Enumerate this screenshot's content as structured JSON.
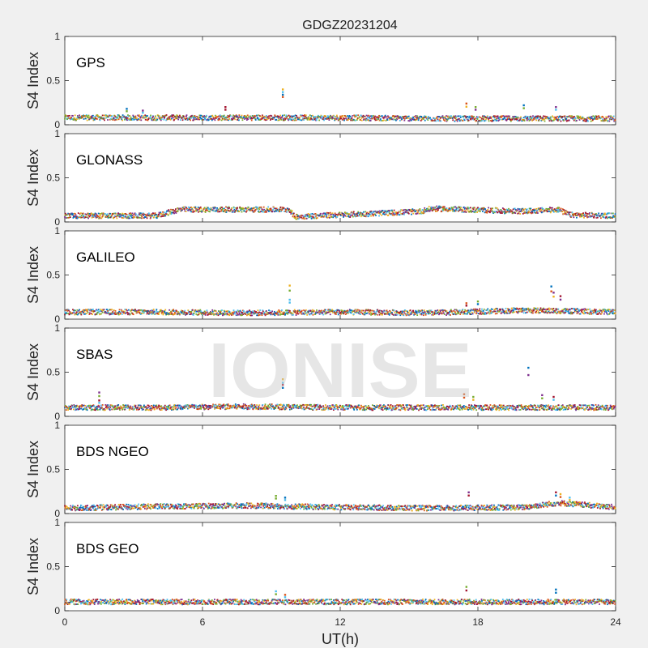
{
  "figure": {
    "title": "GDGZ20231204",
    "xlabel": "UT(h)",
    "watermark": "IONISE"
  },
  "chart_data": {
    "type": "scatter",
    "title": "GDGZ20231204",
    "xlabel": "UT(h)",
    "ylabel": "S4 Index",
    "xlim": [
      0,
      24
    ],
    "ylim": [
      0,
      1
    ],
    "xticks": [
      "0",
      "6",
      "12",
      "18",
      "24"
    ],
    "yticks": [
      "0",
      "0.5",
      "1"
    ],
    "grid": false,
    "series_colors": [
      "#0072bd",
      "#d95319",
      "#edb120",
      "#7e2f8e",
      "#77ac30",
      "#4dbeee",
      "#a2142f"
    ],
    "panels": [
      {
        "name": "GPS",
        "ylabel": "S4 Index",
        "baseline": [
          [
            0,
            0.08
          ],
          [
            4,
            0.08
          ],
          [
            8,
            0.08
          ],
          [
            12,
            0.08
          ],
          [
            16,
            0.07
          ],
          [
            20,
            0.07
          ],
          [
            24,
            0.07
          ]
        ],
        "spikes": [
          [
            2.7,
            0.18
          ],
          [
            3.4,
            0.16
          ],
          [
            7.0,
            0.2
          ],
          [
            9.5,
            0.4
          ],
          [
            9.5,
            0.37
          ],
          [
            17.5,
            0.24
          ],
          [
            17.9,
            0.2
          ],
          [
            20.0,
            0.22
          ],
          [
            21.4,
            0.2
          ]
        ]
      },
      {
        "name": "GLONASS",
        "ylabel": "S4 Index",
        "baseline": [
          [
            0,
            0.07
          ],
          [
            4,
            0.07
          ],
          [
            5,
            0.14
          ],
          [
            9.8,
            0.14
          ],
          [
            10,
            0.06
          ],
          [
            14,
            0.1
          ],
          [
            15.5,
            0.12
          ],
          [
            16,
            0.15
          ],
          [
            20,
            0.12
          ],
          [
            21.5,
            0.14
          ],
          [
            22,
            0.08
          ],
          [
            24,
            0.07
          ]
        ],
        "spikes": [
          [
            16.5,
            0.17
          ],
          [
            21.5,
            0.16
          ]
        ]
      },
      {
        "name": "GALILEO",
        "ylabel": "S4 Index",
        "baseline": [
          [
            0,
            0.08
          ],
          [
            4,
            0.08
          ],
          [
            8,
            0.07
          ],
          [
            12,
            0.08
          ],
          [
            16,
            0.07
          ],
          [
            20,
            0.1
          ],
          [
            24,
            0.08
          ]
        ],
        "spikes": [
          [
            9.8,
            0.38
          ],
          [
            9.8,
            0.22
          ],
          [
            17.5,
            0.18
          ],
          [
            18.0,
            0.2
          ],
          [
            21.2,
            0.37
          ],
          [
            21.3,
            0.3
          ],
          [
            21.6,
            0.26
          ]
        ]
      },
      {
        "name": "SBAS",
        "ylabel": "S4 Index",
        "baseline": [
          [
            0,
            0.1
          ],
          [
            4,
            0.1
          ],
          [
            8,
            0.11
          ],
          [
            12,
            0.1
          ],
          [
            16,
            0.1
          ],
          [
            20,
            0.1
          ],
          [
            24,
            0.1
          ]
        ],
        "spikes": [
          [
            1.5,
            0.27
          ],
          [
            1.5,
            0.18
          ],
          [
            9.5,
            0.42
          ],
          [
            9.5,
            0.38
          ],
          [
            17.4,
            0.25
          ],
          [
            17.8,
            0.22
          ],
          [
            20.2,
            0.55
          ],
          [
            20.8,
            0.24
          ],
          [
            21.3,
            0.22
          ]
        ]
      },
      {
        "name": "BDS NGEO",
        "ylabel": "S4 Index",
        "baseline": [
          [
            0,
            0.06
          ],
          [
            4,
            0.08
          ],
          [
            8,
            0.09
          ],
          [
            12,
            0.07
          ],
          [
            16,
            0.06
          ],
          [
            20,
            0.07
          ],
          [
            21.5,
            0.12
          ],
          [
            24,
            0.07
          ]
        ],
        "spikes": [
          [
            9.2,
            0.2
          ],
          [
            9.6,
            0.18
          ],
          [
            17.6,
            0.24
          ],
          [
            21.4,
            0.24
          ],
          [
            21.6,
            0.22
          ],
          [
            22.0,
            0.18
          ]
        ]
      },
      {
        "name": "BDS GEO",
        "ylabel": "S4 Index",
        "baseline": [
          [
            0,
            0.1
          ],
          [
            4,
            0.1
          ],
          [
            8,
            0.1
          ],
          [
            12,
            0.1
          ],
          [
            16,
            0.1
          ],
          [
            20,
            0.1
          ],
          [
            24,
            0.1
          ]
        ],
        "spikes": [
          [
            9.2,
            0.22
          ],
          [
            9.6,
            0.18
          ],
          [
            17.5,
            0.27
          ],
          [
            21.4,
            0.24
          ]
        ]
      }
    ]
  }
}
